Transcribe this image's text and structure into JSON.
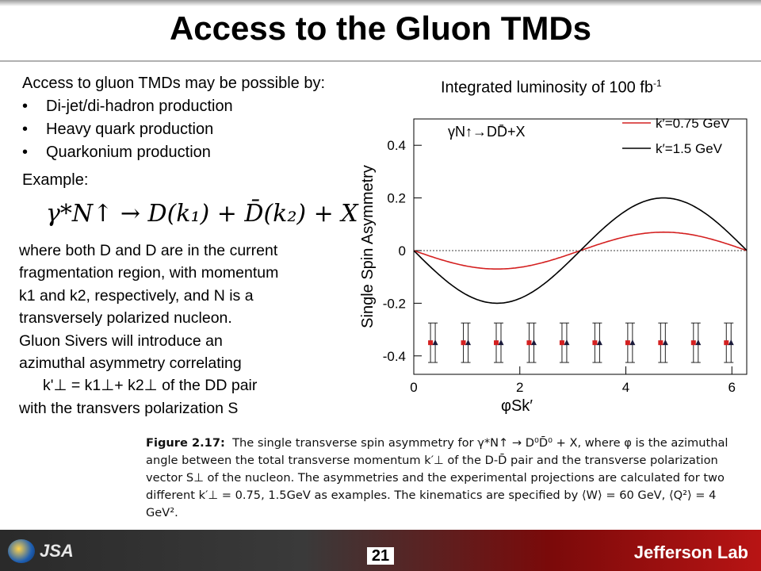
{
  "slide": {
    "title": "Access to the Gluon TMDs",
    "intro": "Access to gluon TMDs may be possible by:",
    "bullets": [
      "Di-jet/di-hadron production",
      "Heavy quark production",
      "Quarkonium production"
    ],
    "example_label": "Example:",
    "formula": "γ*N↑ → D(k₁) + D̄(k₂) + X",
    "body_lines": [
      "where both D and D are in the current",
      "fragmentation region, with momentum",
      "k1 and k2, respectively, and N is a",
      "transversely polarized nucleon.",
      "Gluon Sivers will introduce an",
      "azimuthal asymmetry correlating",
      "k'⊥ = k1⊥+ k2⊥ of the DD pair",
      "with the transvers polarization S"
    ],
    "luminosity_label": "Integrated luminosity of 100 fb",
    "luminosity_sup": "-1",
    "caption": {
      "label": "Figure 2.17:",
      "text": "The single transverse spin asymmetry for γ*N↑ → D⁰D̄⁰ + X, where φ is the azimuthal angle between the total transverse momentum k′⊥ of the D-D̄ pair and the transverse polarization vector S⊥ of the nucleon. The asymmetries and the experimental projections are calculated for two different k′⊥ = 0.75, 1.5GeV as examples. The kinematics are specified by ⟨W⟩ = 60 GeV, ⟨Q²⟩ = 4 GeV²."
    },
    "page_number": "21",
    "footer": {
      "jsa": "JSA",
      "jlab": "Jefferson Lab"
    }
  },
  "chart_data": {
    "type": "line",
    "title": "",
    "annotation": "γN↑→DD̄+X",
    "xlabel": "φSk′",
    "ylabel": "Single Spin Asymmetry",
    "xlim": [
      0,
      6.28
    ],
    "ylim": [
      -0.47,
      0.5
    ],
    "xticks": [
      0,
      2,
      4,
      6
    ],
    "yticks": [
      -0.4,
      -0.2,
      0,
      0.2,
      0.4
    ],
    "ytick_labels": [
      "-0.4",
      "-0.2",
      "0",
      "0.2",
      "0.4"
    ],
    "reference_line_y": 0,
    "series": [
      {
        "name": "k′=0.75 GeV",
        "color": "#d42020",
        "amplitude": 0.07,
        "x": [
          0,
          0.5,
          1.0,
          1.57,
          2.0,
          2.5,
          3.14,
          3.8,
          4.2,
          4.71,
          5.2,
          5.7,
          6.28
        ],
        "y": [
          0,
          -0.034,
          -0.059,
          -0.07,
          -0.064,
          -0.042,
          0,
          0.043,
          0.061,
          0.07,
          0.062,
          0.038,
          0
        ]
      },
      {
        "name": "k′=1.5 GeV",
        "color": "#000000",
        "amplitude": 0.2,
        "x": [
          0,
          0.5,
          1.0,
          1.57,
          2.0,
          2.5,
          3.14,
          3.8,
          4.2,
          4.71,
          5.2,
          5.7,
          6.28
        ],
        "y": [
          0,
          -0.096,
          -0.168,
          -0.2,
          -0.182,
          -0.12,
          0,
          0.122,
          0.174,
          0.2,
          0.177,
          0.11,
          0
        ]
      }
    ],
    "projections": {
      "color_red": "#d42020",
      "color_black": "#1a1a3a",
      "y": -0.35,
      "x": [
        0.36,
        0.98,
        1.6,
        2.22,
        2.84,
        3.46,
        4.08,
        4.7,
        5.32,
        5.94
      ],
      "error": 0.075
    }
  }
}
